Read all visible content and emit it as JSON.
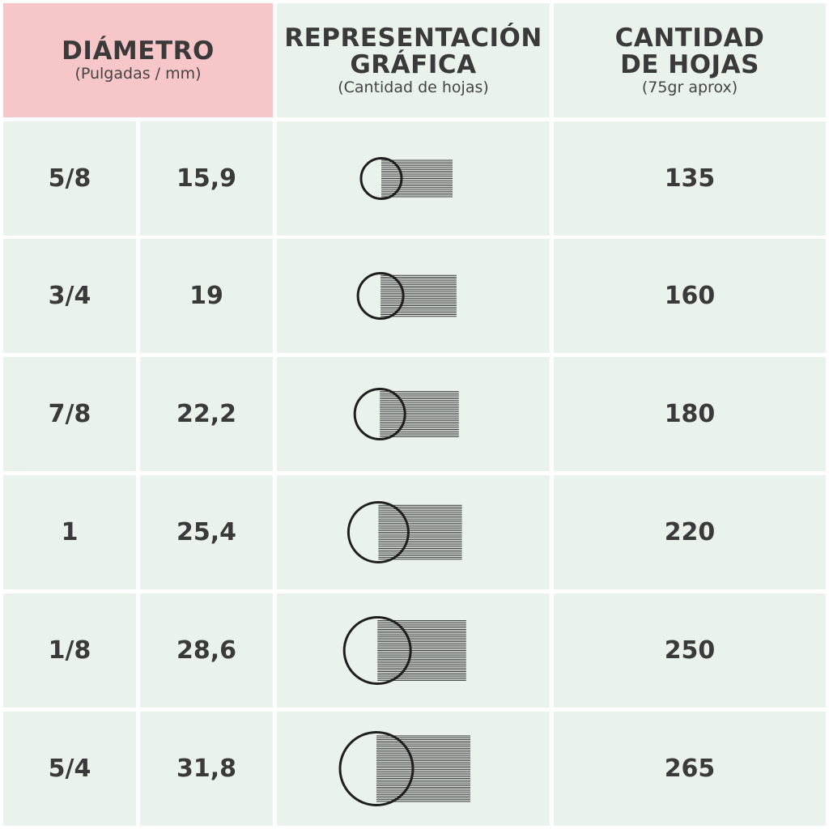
{
  "header": {
    "diameter_title": "DIÁMETRO",
    "diameter_sub": "(Pulgadas / mm)",
    "graphic_title_1": "REPRESENTACIÓN",
    "graphic_title_2": "GRÁFICA",
    "graphic_sub": "(Cantidad de hojas)",
    "sheets_title_1": "CANTIDAD",
    "sheets_title_2": "DE HOJAS",
    "sheets_sub": "(75gr aprox)"
  },
  "rows": [
    {
      "inches": "5/8",
      "mm": "15,9",
      "sheets": "135"
    },
    {
      "inches": "3/4",
      "mm": "19",
      "sheets": "160"
    },
    {
      "inches": "7/8",
      "mm": "22,2",
      "sheets": "180"
    },
    {
      "inches": "1",
      "mm": "25,4",
      "sheets": "220"
    },
    {
      "inches": "1/8",
      "mm": "28,6",
      "sheets": "250"
    },
    {
      "inches": "5/4",
      "mm": "31,8",
      "sheets": "265"
    }
  ],
  "colors": {
    "header_diameter_bg": "#f7c6c8",
    "cell_bg": "#e9f3ec",
    "text": "#3a3a3a",
    "grid": "#ffffff"
  },
  "icons": [
    "binding-ring-icon"
  ]
}
